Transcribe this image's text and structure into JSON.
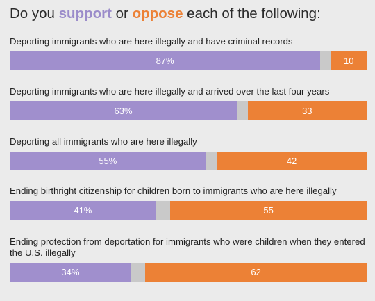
{
  "title": {
    "prefix": "Do you ",
    "support_word": "support",
    "middle": " or ",
    "oppose_word": "oppose",
    "suffix": " each of the following:"
  },
  "colors": {
    "support": "#a08fcd",
    "neither": "#c9c9c9",
    "oppose": "#ec8136",
    "background": "#ebebeb"
  },
  "chart_data": {
    "type": "bar",
    "orientation": "horizontal",
    "stacked": true,
    "xlim": [
      0,
      100
    ],
    "categories": [
      "Deporting immigrants who are here illegally and have criminal records",
      "Deporting immigrants who are here illegally and arrived over the last four years",
      "Deporting all immigrants who are here illegally",
      "Ending birthright citizenship for children born to immigrants who are here illegally",
      "Ending protection from deportation for immigrants who were children when they entered the U.S. illegally"
    ],
    "series": [
      {
        "name": "support",
        "values": [
          87,
          63,
          55,
          41,
          34
        ],
        "labels": [
          "87%",
          "63%",
          "55%",
          "41%",
          "34%"
        ]
      },
      {
        "values": [
          3,
          3,
          3,
          4,
          4
        ]
      },
      {
        "name": "oppose",
        "values": [
          10,
          33,
          42,
          55,
          62
        ],
        "labels": [
          "10",
          "33",
          "42",
          "55",
          "62"
        ]
      }
    ]
  }
}
